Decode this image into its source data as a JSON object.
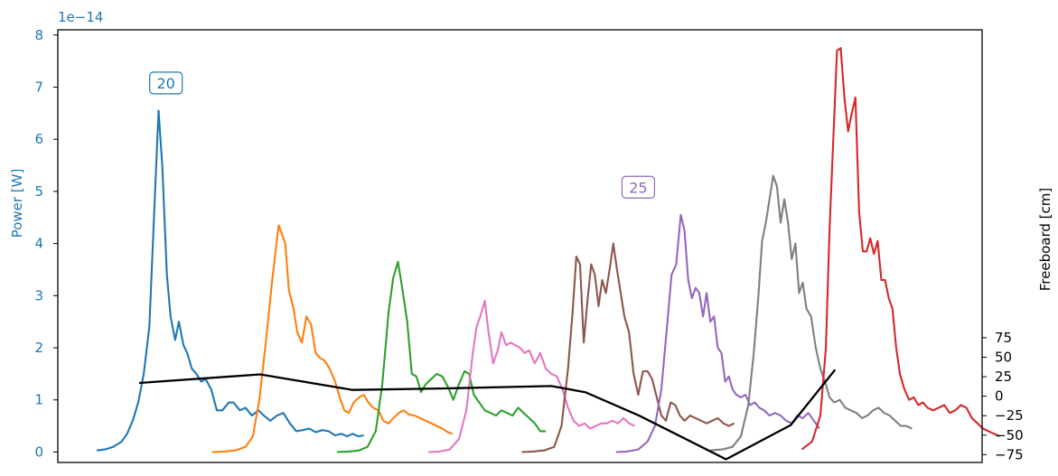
{
  "chart_data": {
    "type": "line",
    "title": "",
    "ylabel": "Power [W]",
    "ylabel_color": "#1f77b4",
    "y_offset_label": "1e−14",
    "ylim": [
      -0.2,
      8.1
    ],
    "yticks": [
      0,
      1,
      2,
      3,
      4,
      5,
      6,
      7,
      8
    ],
    "y2label": "Freeboard [cm]",
    "y2lim": [
      -85,
      470
    ],
    "y2ticks": [
      -75,
      -50,
      -25,
      0,
      25,
      50,
      75
    ],
    "xlim": [
      0,
      100
    ],
    "grid": false,
    "series": [
      {
        "color": "#1f77b4",
        "x": [
          4.2,
          5.1,
          6.0,
          6.9,
          7.5,
          8.1,
          8.7,
          9.3,
          9.9,
          10.5,
          10.9,
          11.3,
          11.8,
          12.2,
          12.7,
          13.1,
          13.6,
          14.0,
          14.5,
          15.0,
          15.5,
          16.0,
          16.6,
          17.2,
          17.8,
          18.5,
          19.0,
          19.7,
          20.3,
          21.0,
          21.7,
          22.3,
          23.0,
          23.7,
          24.4,
          25.1,
          25.8,
          26.5,
          27.2,
          27.9,
          28.6,
          29.3,
          30.0,
          30.7,
          31.3,
          31.9,
          32.5,
          33.1
        ],
        "y": [
          0.03,
          0.05,
          0.1,
          0.2,
          0.35,
          0.6,
          0.95,
          1.5,
          2.4,
          4.9,
          6.55,
          5.5,
          3.4,
          2.6,
          2.15,
          2.5,
          2.05,
          1.9,
          1.6,
          1.5,
          1.35,
          1.4,
          1.2,
          0.8,
          0.8,
          0.95,
          0.95,
          0.8,
          0.85,
          0.7,
          0.8,
          0.7,
          0.6,
          0.7,
          0.75,
          0.55,
          0.4,
          0.42,
          0.45,
          0.38,
          0.42,
          0.4,
          0.32,
          0.35,
          0.3,
          0.35,
          0.3,
          0.32
        ]
      },
      {
        "color": "#ff7f0e",
        "x": [
          16.7,
          18.0,
          19.2,
          20.3,
          21.1,
          21.8,
          22.5,
          23.2,
          23.9,
          24.6,
          25.0,
          25.5,
          25.9,
          26.4,
          26.9,
          27.4,
          27.9,
          28.4,
          28.9,
          29.4,
          30.0,
          30.5,
          31.0,
          31.5,
          32.0,
          32.6,
          33.1,
          33.6,
          34.1,
          34.7,
          35.2,
          35.8,
          36.3,
          36.9,
          37.4,
          38.0,
          38.6,
          39.2,
          39.8,
          40.4,
          41.0,
          41.6,
          42.2,
          42.7
        ],
        "y": [
          0.0,
          0.01,
          0.03,
          0.1,
          0.3,
          1.0,
          2.1,
          3.3,
          4.35,
          4.0,
          3.1,
          2.75,
          2.3,
          2.1,
          2.6,
          2.45,
          1.9,
          1.8,
          1.75,
          1.6,
          1.35,
          1.05,
          0.8,
          0.75,
          0.95,
          1.05,
          1.1,
          0.95,
          0.85,
          0.8,
          0.6,
          0.55,
          0.65,
          0.75,
          0.8,
          0.72,
          0.7,
          0.65,
          0.6,
          0.55,
          0.5,
          0.45,
          0.38,
          0.35
        ]
      },
      {
        "color": "#2ca02c",
        "x": [
          30.2,
          31.5,
          32.6,
          33.5,
          34.4,
          35.1,
          35.8,
          36.3,
          36.8,
          37.3,
          37.8,
          38.3,
          38.8,
          39.3,
          39.8,
          40.4,
          41.0,
          41.6,
          42.2,
          42.8,
          43.4,
          44.0,
          44.5,
          45.0,
          45.6,
          46.2,
          46.8,
          47.4,
          48.0,
          48.6,
          49.2,
          49.8,
          50.4,
          51.0,
          51.6,
          52.2,
          52.8
        ],
        "y": [
          0.0,
          0.01,
          0.03,
          0.1,
          0.4,
          1.3,
          2.7,
          3.35,
          3.65,
          3.1,
          2.5,
          1.5,
          1.45,
          1.15,
          1.3,
          1.4,
          1.5,
          1.45,
          1.25,
          1.0,
          1.3,
          1.55,
          1.5,
          1.1,
          0.95,
          0.8,
          0.75,
          0.7,
          0.8,
          0.75,
          0.7,
          0.85,
          0.75,
          0.65,
          0.55,
          0.4,
          0.4
        ]
      },
      {
        "color": "#e377c2",
        "x": [
          40.1,
          41.3,
          42.4,
          43.4,
          44.2,
          44.9,
          45.3,
          45.7,
          46.2,
          46.6,
          47.1,
          47.6,
          48.0,
          48.5,
          49.0,
          49.5,
          50.0,
          50.5,
          51.0,
          51.6,
          52.2,
          52.8,
          53.4,
          54.0,
          54.6,
          55.2,
          55.8,
          56.4,
          57.0,
          57.6,
          58.2,
          58.8,
          59.4,
          60.0,
          60.6,
          61.2,
          61.8,
          62.4
        ],
        "y": [
          0.0,
          0.01,
          0.05,
          0.25,
          0.8,
          1.9,
          2.4,
          2.6,
          2.9,
          2.3,
          1.7,
          1.95,
          2.3,
          2.05,
          2.1,
          2.05,
          2.0,
          1.9,
          1.95,
          1.7,
          1.9,
          1.6,
          1.5,
          1.45,
          1.2,
          0.85,
          0.6,
          0.5,
          0.55,
          0.45,
          0.5,
          0.55,
          0.55,
          0.6,
          0.55,
          0.65,
          0.55,
          0.5
        ]
      },
      {
        "color": "#8c564b",
        "x": [
          50.2,
          51.4,
          52.6,
          53.7,
          54.5,
          55.2,
          55.7,
          56.1,
          56.5,
          56.9,
          57.3,
          57.7,
          58.1,
          58.5,
          58.9,
          59.3,
          59.7,
          60.1,
          60.5,
          60.9,
          61.3,
          61.8,
          62.3,
          62.8,
          63.3,
          63.8,
          64.3,
          64.8,
          65.3,
          65.8,
          66.3,
          66.8,
          67.3,
          67.8,
          68.4,
          69.0,
          69.6,
          70.2,
          70.8,
          71.4,
          72.0,
          72.6,
          73.2
        ],
        "y": [
          0.0,
          0.01,
          0.03,
          0.1,
          0.5,
          1.6,
          2.7,
          3.75,
          3.6,
          2.1,
          2.9,
          3.6,
          3.4,
          2.8,
          3.3,
          3.05,
          3.5,
          4.0,
          3.5,
          3.05,
          2.6,
          2.3,
          1.5,
          1.1,
          1.55,
          1.55,
          1.4,
          1.05,
          0.7,
          0.6,
          0.95,
          0.9,
          0.7,
          0.6,
          0.7,
          0.65,
          0.6,
          0.55,
          0.6,
          0.65,
          0.55,
          0.5,
          0.55
        ]
      },
      {
        "color": "#9467bd",
        "x": [
          60.4,
          61.6,
          62.8,
          63.8,
          64.6,
          65.3,
          65.9,
          66.4,
          66.9,
          67.4,
          67.8,
          68.2,
          68.6,
          69.0,
          69.4,
          69.8,
          70.2,
          70.6,
          71.0,
          71.4,
          71.8,
          72.2,
          72.6,
          73.0,
          73.4,
          73.9,
          74.4,
          74.9,
          75.4,
          75.9,
          76.4,
          77.0,
          77.6,
          78.2,
          78.8,
          79.4,
          80.0,
          80.6,
          81.2,
          81.8,
          82.4
        ],
        "y": [
          0.0,
          0.01,
          0.05,
          0.2,
          0.5,
          1.2,
          2.4,
          3.4,
          3.6,
          4.55,
          4.25,
          3.3,
          2.95,
          3.15,
          3.05,
          2.6,
          3.05,
          2.5,
          2.6,
          2.0,
          1.9,
          1.35,
          1.45,
          1.2,
          1.1,
          1.05,
          1.1,
          0.9,
          0.95,
          0.85,
          0.8,
          0.7,
          0.75,
          0.7,
          0.6,
          0.55,
          0.7,
          0.65,
          0.75,
          0.6,
          0.45
        ]
      },
      {
        "color": "#7f7f7f",
        "x": [
          70.6,
          71.9,
          73.0,
          73.9,
          74.7,
          75.3,
          75.8,
          76.2,
          76.6,
          77.0,
          77.4,
          77.8,
          78.2,
          78.6,
          79.0,
          79.4,
          79.8,
          80.2,
          80.6,
          81.0,
          81.5,
          82.0,
          82.5,
          83.0,
          83.5,
          84.0,
          84.6,
          85.2,
          85.8,
          86.4,
          87.0,
          87.6,
          88.2,
          88.8,
          89.4,
          90.0,
          90.6,
          91.2,
          91.8,
          92.4
        ],
        "y": [
          0.03,
          0.05,
          0.1,
          0.3,
          0.9,
          1.9,
          3.0,
          4.05,
          4.4,
          4.85,
          5.3,
          5.1,
          4.4,
          4.85,
          4.4,
          3.7,
          4.0,
          3.05,
          3.25,
          2.75,
          2.6,
          2.0,
          1.6,
          1.35,
          1.05,
          0.95,
          1.0,
          0.85,
          0.8,
          0.75,
          0.65,
          0.7,
          0.8,
          0.85,
          0.75,
          0.7,
          0.6,
          0.5,
          0.5,
          0.45
        ]
      },
      {
        "color": "#d62728",
        "x": [
          80.5,
          81.6,
          82.5,
          83.1,
          83.5,
          83.9,
          84.3,
          84.7,
          85.1,
          85.5,
          85.9,
          86.3,
          86.7,
          87.1,
          87.5,
          87.9,
          88.3,
          88.7,
          89.1,
          89.5,
          89.9,
          90.3,
          90.7,
          91.1,
          91.6,
          92.1,
          92.6,
          93.1,
          93.6,
          94.1,
          94.7,
          95.3,
          95.9,
          96.5,
          97.1,
          97.7,
          98.3,
          98.9,
          99.5,
          100.1,
          100.7,
          101.3,
          101.9
        ],
        "y": [
          0.05,
          0.2,
          0.7,
          2.0,
          4.3,
          6.0,
          7.7,
          7.75,
          6.8,
          6.15,
          6.5,
          6.8,
          4.6,
          3.85,
          3.85,
          4.1,
          3.8,
          4.05,
          3.3,
          3.3,
          2.95,
          2.75,
          2.0,
          1.5,
          1.2,
          1.0,
          1.05,
          0.9,
          0.95,
          0.85,
          0.8,
          0.85,
          0.9,
          0.75,
          0.8,
          0.9,
          0.85,
          0.65,
          0.55,
          0.45,
          0.4,
          0.35,
          0.3
        ]
      }
    ],
    "freeboard": {
      "color": "#000000",
      "x": [
        8.8,
        21.9,
        31.9,
        42.1,
        53.4,
        57.1,
        62.9,
        72.3,
        79.3,
        84.1
      ],
      "y": [
        17,
        28,
        8,
        10,
        13,
        5,
        -25,
        -81,
        -37,
        34
      ]
    },
    "annotations": [
      {
        "text": "20",
        "x": 11.7,
        "y": 7.08,
        "color": "#1f77b4"
      },
      {
        "text": "25",
        "x": 62.8,
        "y": 5.08,
        "color": "#9467bd"
      }
    ]
  }
}
